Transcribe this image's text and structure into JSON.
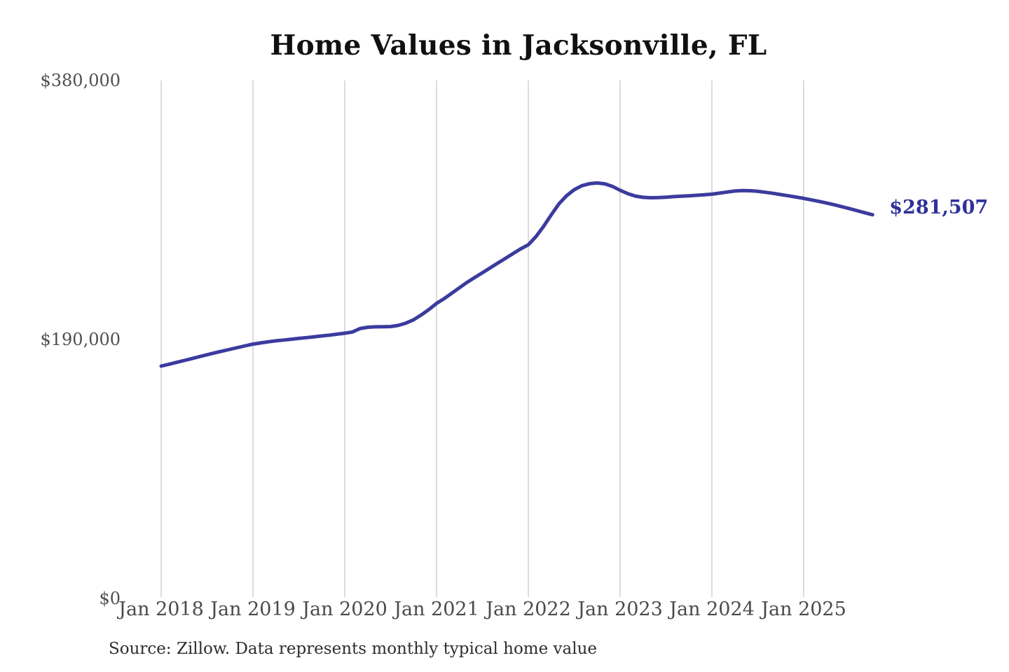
{
  "title": "Home Values in Jacksonville, FL",
  "source_note": "Source: Zillow. Data represents monthly typical home value",
  "end_label": "$281,507",
  "colors": {
    "line": "#3b3b9e",
    "end_label": "#30309a",
    "grid": "#cccccc",
    "tick_text": "#4f4f4f",
    "title_text": "#101010",
    "source_text": "#2e2e2e",
    "background": "#ffffff"
  },
  "chart_data": {
    "type": "line",
    "title": "Home Values in Jacksonville, FL",
    "xlabel": "",
    "ylabel": "",
    "ylim": [
      0,
      380000
    ],
    "grid": "vertical-only",
    "legend": "none",
    "yticks": [
      {
        "value": 380000,
        "label": "$380,000"
      },
      {
        "value": 190000,
        "label": "$190,000"
      },
      {
        "value": 0,
        "label": "$0"
      }
    ],
    "xticks": [
      {
        "month_index": 0,
        "label": "Jan 2018"
      },
      {
        "month_index": 12,
        "label": "Jan 2019"
      },
      {
        "month_index": 24,
        "label": "Jan 2020"
      },
      {
        "month_index": 36,
        "label": "Jan 2021"
      },
      {
        "month_index": 48,
        "label": "Jan 2022"
      },
      {
        "month_index": 60,
        "label": "Jan 2023"
      },
      {
        "month_index": 72,
        "label": "Jan 2024"
      },
      {
        "month_index": 84,
        "label": "Jan 2025"
      }
    ],
    "series": [
      {
        "name": "Monthly typical home value",
        "start_month": "2018-01",
        "end_month": "2025-10",
        "frequency": "monthly",
        "final_value": 281507,
        "final_value_label": "$281,507",
        "values": [
          170500,
          171800,
          173200,
          174600,
          176000,
          177400,
          178800,
          180200,
          181500,
          182800,
          184100,
          185400,
          186600,
          187500,
          188300,
          189000,
          189600,
          190200,
          190800,
          191400,
          192000,
          192600,
          193200,
          193900,
          194600,
          195500,
          198000,
          199000,
          199300,
          199400,
          199500,
          200300,
          202000,
          204500,
          208000,
          212000,
          216500,
          220000,
          224000,
          228000,
          232000,
          235500,
          239000,
          242500,
          246000,
          249500,
          253000,
          256500,
          259500,
          265500,
          273000,
          281500,
          289500,
          295500,
          299900,
          302800,
          304300,
          304800,
          304200,
          302300,
          299500,
          297000,
          295200,
          294300,
          294000,
          294100,
          294400,
          294800,
          295100,
          295400,
          295800,
          296200,
          296600,
          297400,
          298200,
          298900,
          299200,
          299100,
          298700,
          298000,
          297200,
          296300,
          295400,
          294500,
          293500,
          292400,
          291300,
          290100,
          288800,
          287400,
          286000,
          284500,
          283000,
          281507
        ]
      }
    ]
  }
}
